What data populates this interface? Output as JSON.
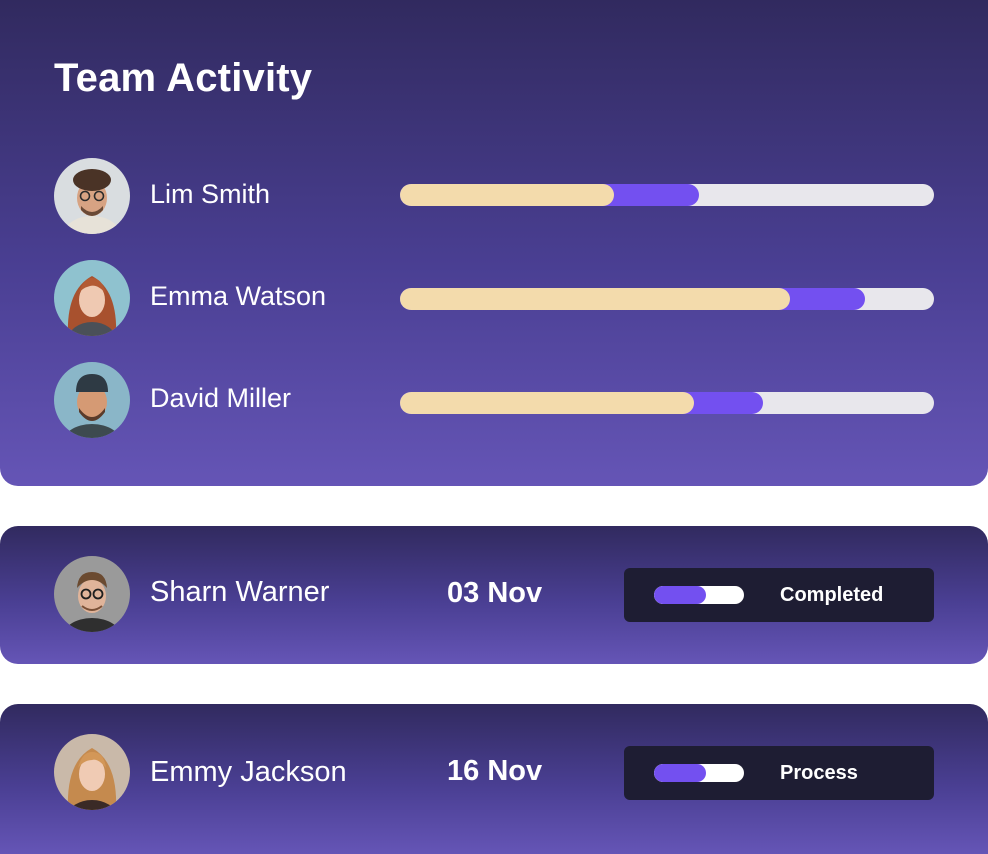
{
  "team_activity": {
    "title": "Team Activity",
    "members": [
      {
        "name": "Lim Smith",
        "avatar": "man-curly-hair-glasses-photo",
        "cream_fraction": 0.4,
        "purple_fraction": 0.56
      },
      {
        "name": "Emma Watson",
        "avatar": "woman-red-hair-photo",
        "cream_fraction": 0.73,
        "purple_fraction": 0.87
      },
      {
        "name": "David Miller",
        "avatar": "man-beanie-beard-photo",
        "cream_fraction": 0.55,
        "purple_fraction": 0.68
      }
    ]
  },
  "task_rows": [
    {
      "name": "Sharn Warner",
      "avatar": "man-glasses-photo",
      "date": "03 Nov",
      "status": "Completed",
      "status_fill_fraction": 0.58
    },
    {
      "name": "Emmy Jackson",
      "avatar": "woman-blonde-photo",
      "date": "16 Nov",
      "status": "Process",
      "status_fill_fraction": 0.58
    }
  ],
  "colors": {
    "card_gradient_top": "#312a5f",
    "card_gradient_bottom": "#6555b6",
    "bar_track": "#e8e7ec",
    "bar_cream": "#f3dbac",
    "accent_purple": "#7350f0",
    "status_box": "#1e1d33"
  }
}
